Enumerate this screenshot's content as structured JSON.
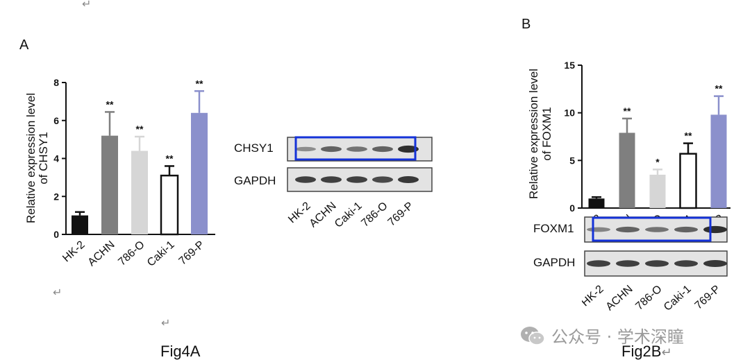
{
  "doc": {
    "return_mark": "↵",
    "caption_a": "Fig4A",
    "caption_b": "Fig2B",
    "watermark": "公众号 · 学术深瞳"
  },
  "panel_a": {
    "letter": "A",
    "blot": {
      "rows": [
        "CHSY1",
        "GAPDH"
      ],
      "lanes": [
        "HK-2",
        "ACHN",
        "Caki-1",
        "786-O",
        "769-P"
      ]
    }
  },
  "panel_b": {
    "letter": "B",
    "blot": {
      "rows": [
        "FOXM1",
        "GAPDH"
      ],
      "lanes": [
        "HK-2",
        "ACHN",
        "786-O",
        "Caki-1",
        "769-P"
      ]
    }
  },
  "colors": {
    "black": "#111111",
    "dark_gray": "#7f7f7f",
    "light_gray": "#d6d6d6",
    "white": "#ffffff",
    "lavender": "#8b90cc",
    "highlight_box": "#1432d8"
  },
  "chart_data": [
    {
      "type": "bar",
      "categories": [
        "HK-2",
        "ACHN",
        "786-O",
        "Caki-1",
        "769-P"
      ],
      "values": [
        1.0,
        5.2,
        4.4,
        3.1,
        6.4
      ],
      "errors": [
        0.18,
        1.25,
        0.75,
        0.5,
        1.15
      ],
      "significance": [
        "",
        "**",
        "**",
        "**",
        "**"
      ],
      "colors": [
        "#111111",
        "#7f7f7f",
        "#d6d6d6",
        "#ffffff",
        "#8b90cc"
      ],
      "ylabel": "Relative expression level of CHSY1",
      "ylim": [
        0,
        8
      ],
      "yticks": [
        0,
        2,
        4,
        6,
        8
      ]
    },
    {
      "type": "bar",
      "categories": [
        "HK-2",
        "ACHN",
        "786-O",
        "Caki-1",
        "769-P"
      ],
      "values": [
        1.0,
        7.9,
        3.5,
        5.7,
        9.8
      ],
      "errors": [
        0.15,
        1.5,
        0.55,
        1.1,
        1.95
      ],
      "significance": [
        "",
        "**",
        "*",
        "**",
        "**"
      ],
      "colors": [
        "#111111",
        "#7f7f7f",
        "#d6d6d6",
        "#ffffff",
        "#8b90cc"
      ],
      "ylabel": "Relative expression level of FOXM1",
      "ylim": [
        0,
        15
      ],
      "yticks": [
        0,
        5,
        10,
        15
      ]
    }
  ]
}
